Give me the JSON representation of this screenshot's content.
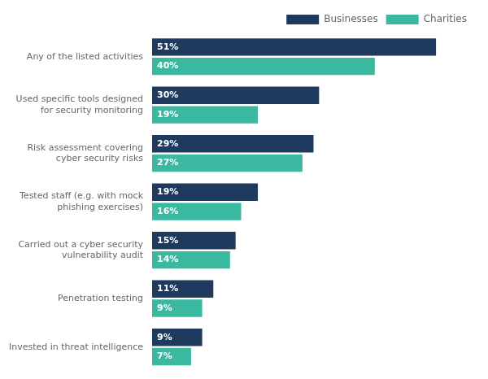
{
  "chart_data": {
    "type": "bar",
    "orientation": "horizontal",
    "categories": [
      "Invested in threat intelligence",
      "Penetration testing",
      "Carried out a cyber security\nvulnerability audit",
      "Tested staff (e.g. with mock\nphishing exercises)",
      "Risk assessment covering\ncyber security risks",
      "Used specific tools designed\nfor security monitoring",
      "Any of the listed activities"
    ],
    "series": [
      {
        "name": "Businesses",
        "color": "#1e3a5f",
        "values": [
          9,
          11,
          15,
          19,
          29,
          30,
          51
        ],
        "value_labels": [
          "9%",
          "11%",
          "15%",
          "19%",
          "29%",
          "30%",
          "51%"
        ]
      },
      {
        "name": "Charities",
        "color": "#3ab8a0",
        "values": [
          7,
          9,
          14,
          16,
          27,
          19,
          40
        ],
        "value_labels": [
          "7%",
          "9%",
          "14%",
          "16%",
          "27%",
          "19%",
          "40%"
        ]
      }
    ],
    "xlim": [
      0,
      58
    ],
    "grid": false,
    "legend": "upper right",
    "data_labels": true,
    "tick_labels": "y"
  }
}
